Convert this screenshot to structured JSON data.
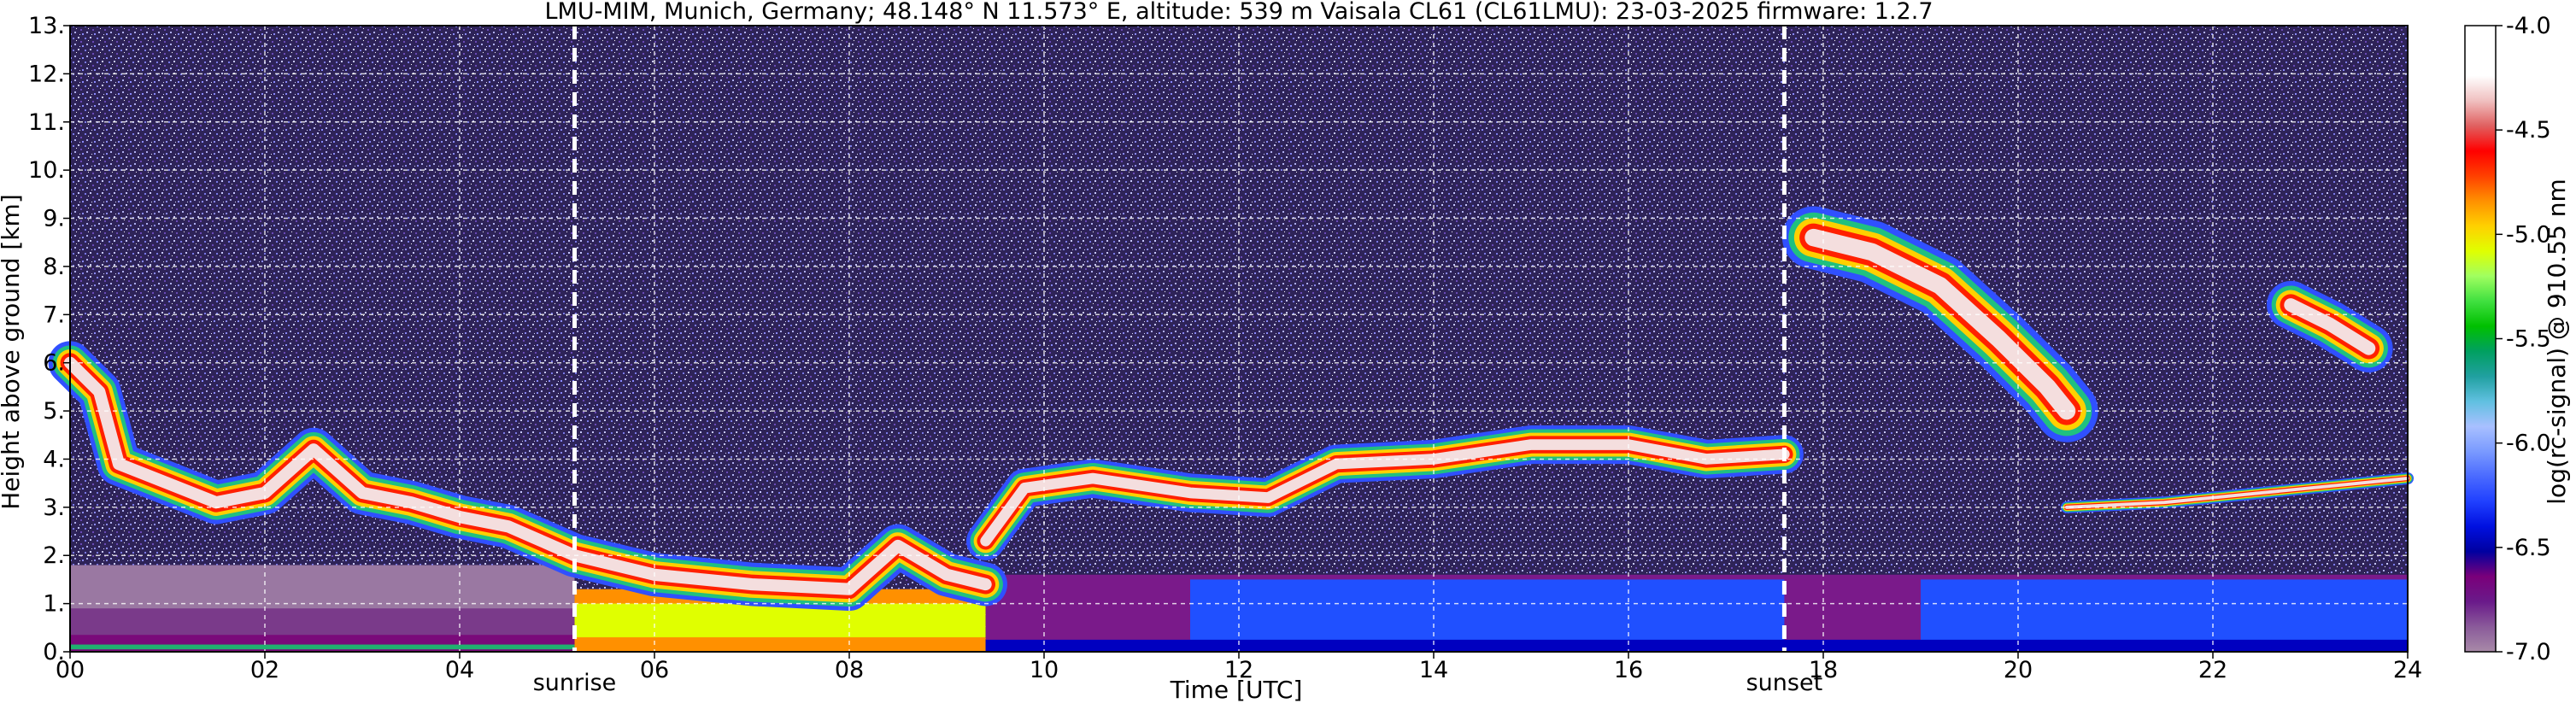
{
  "chart_data": {
    "type": "heatmap",
    "title": "LMU-MIM, Munich, Germany; 48.148° N 11.573° E, altitude: 539 m    Vaisala CL61 (CL61LMU): 23-03-2025    firmware: 1.2.7",
    "xlabel": "Time [UTC]",
    "ylabel": "Height above ground [km]",
    "xlim": [
      0,
      24
    ],
    "ylim": [
      0,
      13
    ],
    "x_ticks": [
      {
        "value": 0,
        "label": "00"
      },
      {
        "value": 2,
        "label": "02"
      },
      {
        "value": 4,
        "label": "04"
      },
      {
        "value": 6,
        "label": "06"
      },
      {
        "value": 8,
        "label": "08"
      },
      {
        "value": 10,
        "label": "10"
      },
      {
        "value": 12,
        "label": "12"
      },
      {
        "value": 14,
        "label": "14"
      },
      {
        "value": 16,
        "label": "16"
      },
      {
        "value": 18,
        "label": "18"
      },
      {
        "value": 20,
        "label": "20"
      },
      {
        "value": 22,
        "label": "22"
      },
      {
        "value": 24,
        "label": "24"
      }
    ],
    "y_ticks": [
      {
        "value": 0,
        "label": "0."
      },
      {
        "value": 1,
        "label": "1."
      },
      {
        "value": 2,
        "label": "2."
      },
      {
        "value": 3,
        "label": "3."
      },
      {
        "value": 4,
        "label": "4."
      },
      {
        "value": 5,
        "label": "5."
      },
      {
        "value": 6,
        "label": "6."
      },
      {
        "value": 7,
        "label": "7."
      },
      {
        "value": 8,
        "label": "8."
      },
      {
        "value": 9,
        "label": "9."
      },
      {
        "value": 10,
        "label": "10."
      },
      {
        "value": 11,
        "label": "11."
      },
      {
        "value": 12,
        "label": "12."
      },
      {
        "value": 13,
        "label": "13."
      }
    ],
    "grid": true,
    "events": [
      {
        "label": "sunrise",
        "time": 5.18
      },
      {
        "label": "sunset",
        "time": 17.6
      }
    ],
    "colorbar": {
      "label": "log(rc-signal) @ 910.55 nm",
      "range": [
        -7.0,
        -4.0
      ],
      "ticks": [
        {
          "value": -4.0,
          "label": "-4.0"
        },
        {
          "value": -4.5,
          "label": "-4.5"
        },
        {
          "value": -5.0,
          "label": "-5.0"
        },
        {
          "value": -5.5,
          "label": "-5.5"
        },
        {
          "value": -6.0,
          "label": "-6.0"
        },
        {
          "value": -6.5,
          "label": "-6.5"
        },
        {
          "value": -7.0,
          "label": "-7.0"
        }
      ],
      "colors": [
        "#a88aa8",
        "#8a5a9a",
        "#6a1a8a",
        "#7a007a",
        "#0000a0",
        "#0010e0",
        "#2040ff",
        "#4a6aff",
        "#7a9aff",
        "#a8c0ff",
        "#60c0e0",
        "#20a0a0",
        "#00a060",
        "#00c000",
        "#40e040",
        "#a0ff60",
        "#e0ff00",
        "#ffd000",
        "#ff9000",
        "#ff4000",
        "#ff0000",
        "#e06060",
        "#f0c0c0",
        "#ffffff",
        "#ffffff",
        "#ffffff"
      ]
    },
    "layers": [
      {
        "kind": "noise",
        "t0": 0,
        "t1": 24,
        "h0": 0,
        "h1": 13,
        "fill": "#3a2c6a"
      },
      {
        "kind": "band",
        "t0": 0,
        "t1": 5.18,
        "h0": 0,
        "h1": 1.8,
        "fill": "#9a78a2"
      },
      {
        "kind": "band",
        "t0": 0,
        "t1": 5.18,
        "h0": 0,
        "h1": 0.9,
        "fill": "#7a3a8a"
      },
      {
        "kind": "band",
        "t0": 0,
        "t1": 5.18,
        "h0": 0,
        "h1": 0.35,
        "fill": "#7a0a7a"
      },
      {
        "kind": "band",
        "t0": 0,
        "t1": 5.18,
        "h0": 0.05,
        "h1": 0.15,
        "fill": "#20b070"
      },
      {
        "kind": "band",
        "t0": 5.18,
        "t1": 9.4,
        "h0": 0,
        "h1": 1.3,
        "fill": "#ff9000"
      },
      {
        "kind": "band",
        "t0": 5.18,
        "t1": 9.4,
        "h0": 0.3,
        "h1": 1.0,
        "fill": "#e0ff00"
      },
      {
        "kind": "band",
        "t0": 9.4,
        "t1": 24,
        "h0": 0,
        "h1": 1.6,
        "fill": "#7a1a8a"
      },
      {
        "kind": "band",
        "t0": 11.5,
        "t1": 17.6,
        "h0": 0,
        "h1": 1.5,
        "fill": "#2050ff"
      },
      {
        "kind": "band",
        "t0": 19.0,
        "t1": 24,
        "h0": 0,
        "h1": 1.5,
        "fill": "#2050ff"
      },
      {
        "kind": "band",
        "t0": 9.4,
        "t1": 24,
        "h0": 0,
        "h1": 0.25,
        "fill": "#0000c0"
      }
    ],
    "clouds": [
      {
        "name": "cloud-layer-night",
        "points": [
          [
            0.0,
            6.0
          ],
          [
            0.3,
            5.4
          ],
          [
            0.5,
            3.9
          ],
          [
            1.0,
            3.5
          ],
          [
            1.5,
            3.1
          ],
          [
            2.0,
            3.3
          ],
          [
            2.5,
            4.2
          ],
          [
            3.0,
            3.3
          ],
          [
            3.5,
            3.1
          ],
          [
            4.0,
            2.8
          ],
          [
            4.5,
            2.6
          ],
          [
            5.18,
            2.0
          ],
          [
            6.0,
            1.6
          ],
          [
            7.0,
            1.4
          ],
          [
            8.0,
            1.3
          ],
          [
            8.5,
            2.2
          ],
          [
            9.0,
            1.6
          ],
          [
            9.4,
            1.4
          ]
        ],
        "thickness": 0.9
      },
      {
        "name": "cloud-layer-day",
        "points": [
          [
            9.4,
            2.3
          ],
          [
            9.8,
            3.4
          ],
          [
            10.5,
            3.6
          ],
          [
            11.5,
            3.3
          ],
          [
            12.3,
            3.2
          ],
          [
            13.0,
            3.9
          ],
          [
            14.0,
            4.0
          ],
          [
            15.0,
            4.3
          ],
          [
            16.0,
            4.3
          ],
          [
            16.8,
            4.0
          ],
          [
            17.6,
            4.1
          ]
        ],
        "thickness": 0.8
      },
      {
        "name": "cirrus-evening",
        "points": [
          [
            17.9,
            8.6
          ],
          [
            18.5,
            8.3
          ],
          [
            19.2,
            7.6
          ],
          [
            19.8,
            6.5
          ],
          [
            20.3,
            5.5
          ],
          [
            20.5,
            5.0
          ]
        ],
        "thickness": 1.3
      },
      {
        "name": "cloud-layer-late",
        "points": [
          [
            20.5,
            3.0
          ],
          [
            21.5,
            3.1
          ],
          [
            22.5,
            3.3
          ],
          [
            23.5,
            3.5
          ],
          [
            24.0,
            3.6
          ]
        ],
        "thickness": 0.25
      },
      {
        "name": "cloud-patch-late",
        "points": [
          [
            22.8,
            7.2
          ],
          [
            23.2,
            6.8
          ],
          [
            23.6,
            6.3
          ]
        ],
        "thickness": 1.0
      }
    ]
  }
}
